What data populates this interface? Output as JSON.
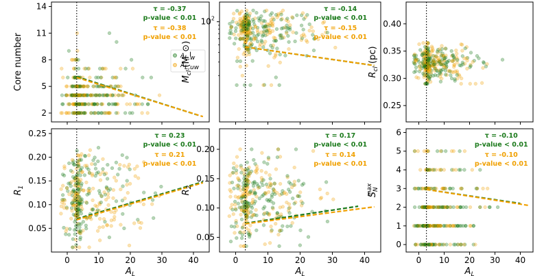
{
  "figure": {
    "colors": {
      "weighted": "#1b7a1b",
      "unweighted": "#f0a000",
      "vline": "#000000"
    },
    "x_label": "A_L",
    "legend": {
      "placement": "center-right",
      "entries": [
        "A_{L,w}",
        "A_{L,uw}"
      ]
    }
  },
  "chart_data": [
    {
      "type": "scatter",
      "panel": "a",
      "ylabel": "Core number",
      "xlim": [
        -5,
        45
      ],
      "ylim": [
        1,
        14.5
      ],
      "xticks": [
        0,
        10,
        20,
        30,
        40
      ],
      "yticks": [
        2,
        5,
        8,
        11,
        14
      ],
      "yscale": "linear",
      "show_xticklabels": false,
      "vline_x": 3,
      "stats": [
        {
          "series": "weighted",
          "tau": "τ = -0.37",
          "p": "p-value < 0.01"
        },
        {
          "series": "unweighted",
          "tau": "τ = -0.38",
          "p": "p-value < 0.01"
        }
      ],
      "has_legend": true,
      "trend": [
        {
          "series": "weighted",
          "x": [
            3,
            42
          ],
          "y": [
            6.1,
            1.7
          ]
        },
        {
          "series": "unweighted",
          "x": [
            3,
            43
          ],
          "y": [
            6.0,
            1.6
          ]
        }
      ],
      "scatter": {
        "x_range": [
          -3,
          43
        ],
        "y_values": [
          2,
          3,
          4,
          5,
          6,
          7,
          8,
          9,
          10,
          11,
          12
        ],
        "discrete_y": true,
        "cluster_center_x": 3
      }
    },
    {
      "type": "scatter",
      "panel": "b",
      "ylabel": "M_{cl} (M_⊙)",
      "xlim": [
        -5,
        45
      ],
      "ylim": [
        5,
        180
      ],
      "yscale": "log",
      "xticks": [
        0,
        10,
        20,
        30,
        40
      ],
      "yticks": [
        100
      ],
      "yticklabels": [
        "10^2"
      ],
      "show_xticklabels": false,
      "vline_x": 3,
      "stats": [
        {
          "series": "weighted",
          "tau": "τ = -0.14",
          "p": "p-value < 0.01"
        },
        {
          "series": "unweighted",
          "tau": "τ = -0.15",
          "p": "p-value < 0.01"
        }
      ],
      "trend": [
        {
          "series": "weighted",
          "x": [
            3,
            43
          ],
          "y": [
            47,
            27
          ]
        },
        {
          "series": "unweighted",
          "x": [
            3,
            43
          ],
          "y": [
            47,
            27
          ]
        }
      ],
      "scatter": {
        "x_range": [
          -3,
          43
        ],
        "y_range": [
          15,
          140
        ],
        "cluster_center_x": 3
      }
    },
    {
      "type": "scatter",
      "panel": "c",
      "ylabel": "R_{cl} (pc)",
      "xlim": [
        -5,
        45
      ],
      "ylim": [
        0.22,
        0.44
      ],
      "yscale": "linear",
      "xticks": [
        0,
        10,
        20,
        30,
        40
      ],
      "yticks": [
        0.25,
        0.3,
        0.35,
        0.4
      ],
      "yticklabels": [
        "0.25",
        "0.30",
        "0.35",
        "0.40"
      ],
      "show_xticklabels": false,
      "vline_x": 3,
      "stats": [],
      "trend": [],
      "scatter": {
        "x_range": [
          -3,
          43
        ],
        "y_range": [
          0.29,
          0.365
        ],
        "cluster_center_x": 3
      }
    },
    {
      "type": "scatter",
      "panel": "d",
      "ylabel": "R_1",
      "xlabel": "A_L",
      "xlim": [
        -5,
        45
      ],
      "ylim": [
        0,
        0.26
      ],
      "yscale": "linear",
      "xticks": [
        0,
        10,
        20,
        30,
        40
      ],
      "xticklabels": [
        "0",
        "10",
        "20",
        "30",
        "40"
      ],
      "yticks": [
        0.05,
        0.1,
        0.15,
        0.2,
        0.25
      ],
      "yticklabels": [
        "0.05",
        "0.10",
        "0.15",
        "0.20",
        "0.25"
      ],
      "show_xticklabels": true,
      "vline_x": 3,
      "stats": [
        {
          "series": "weighted",
          "tau": "τ = 0.23",
          "p": "p-value < 0.01"
        },
        {
          "series": "unweighted",
          "tau": "τ = 0.21",
          "p": "p-value < 0.01"
        }
      ],
      "trend": [
        {
          "series": "weighted",
          "x": [
            3,
            43
          ],
          "y": [
            0.07,
            0.148
          ]
        },
        {
          "series": "unweighted",
          "x": [
            3,
            43
          ],
          "y": [
            0.068,
            0.146
          ]
        }
      ],
      "scatter": {
        "x_range": [
          -3,
          43
        ],
        "y_range": [
          0.01,
          0.22
        ],
        "cluster_center_x": 3
      }
    },
    {
      "type": "scatter",
      "panel": "e",
      "ylabel": "R_2",
      "xlabel": "A_L",
      "xlim": [
        -5,
        45
      ],
      "ylim": [
        0.025,
        0.235
      ],
      "yscale": "linear",
      "xticks": [
        0,
        10,
        20,
        30,
        40
      ],
      "xticklabels": [
        "0",
        "10",
        "20",
        "30",
        "40"
      ],
      "yticks": [
        0.05,
        0.1,
        0.15,
        0.2
      ],
      "yticklabels": [
        "0.05",
        "0.10",
        "0.15",
        "0.20"
      ],
      "show_xticklabels": true,
      "vline_x": 3,
      "stats": [
        {
          "series": "weighted",
          "tau": "τ = 0.17",
          "p": "p-value < 0.01"
        },
        {
          "series": "unweighted",
          "tau": "τ = 0.14",
          "p": "p-value < 0.01"
        }
      ],
      "trend": [
        {
          "series": "weighted",
          "x": [
            3,
            38
          ],
          "y": [
            0.074,
            0.103
          ]
        },
        {
          "series": "unweighted",
          "x": [
            3,
            43
          ],
          "y": [
            0.073,
            0.102
          ]
        }
      ],
      "scatter": {
        "x_range": [
          -3,
          43
        ],
        "y_range": [
          0.035,
          0.2
        ],
        "cluster_center_x": 3
      }
    },
    {
      "type": "scatter",
      "panel": "f",
      "ylabel": "S_N^{max}",
      "xlabel": "A_L",
      "xlim": [
        -5,
        45
      ],
      "ylim": [
        -0.4,
        6.2
      ],
      "yscale": "linear",
      "xticks": [
        0,
        10,
        20,
        30,
        40
      ],
      "xticklabels": [
        "0",
        "10",
        "20",
        "30",
        "40"
      ],
      "yticks": [
        0,
        1,
        2,
        3,
        4,
        5,
        6
      ],
      "yticklabels": [
        "0",
        "1",
        "2",
        "3",
        "4",
        "5",
        "6"
      ],
      "show_xticklabels": true,
      "vline_x": 3,
      "stats": [
        {
          "series": "weighted",
          "tau": "τ = -0.10",
          "p": "p-value < 0.01"
        },
        {
          "series": "unweighted",
          "tau": "τ = -0.10",
          "p": "p-value < 0.01"
        }
      ],
      "trend": [
        {
          "series": "weighted",
          "x": [
            3,
            40
          ],
          "y": [
            2.95,
            2.2
          ]
        },
        {
          "series": "unweighted",
          "x": [
            3,
            43
          ],
          "y": [
            2.95,
            2.1
          ]
        }
      ],
      "scatter": {
        "x_range": [
          -3,
          43
        ],
        "y_values": [
          0,
          1,
          2,
          3,
          4,
          5
        ],
        "discrete_y": true,
        "cluster_center_x": 3
      }
    }
  ]
}
